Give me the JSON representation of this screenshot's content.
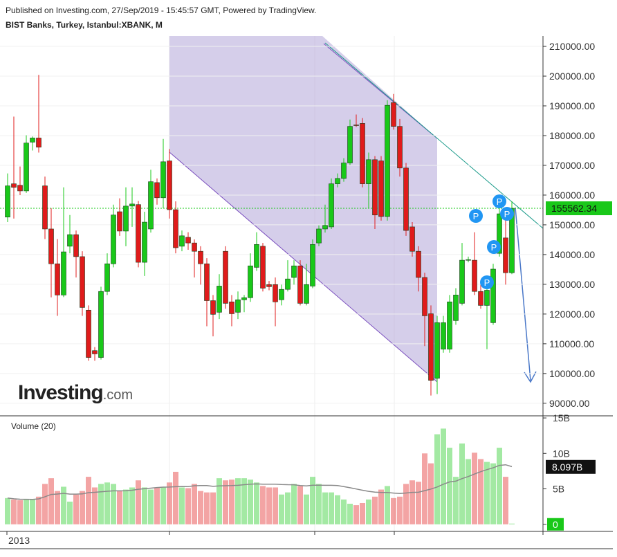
{
  "chart_data": {
    "type": "candlestick",
    "published": "Published on Investing.com, 27/Sep/2019 - 15:45:57 GMT, Powered by TradingView.",
    "title": "BIST Banks, Turkey, Istanbul:XBANK, M",
    "period_label": "2013",
    "logo": {
      "name": "Investing",
      "suffix": ".com"
    },
    "marker_label": "P",
    "up_color": "#19c819",
    "down_color": "#e01b1b",
    "open": [
      152600,
      163800,
      163300,
      161400,
      177800,
      179200,
      163100,
      148600,
      136900,
      126400,
      142800,
      146700,
      139300,
      121300,
      107700,
      105400,
      127600,
      136900,
      154400,
      147900,
      156300,
      156800,
      137400,
      148600,
      164200,
      159100,
      171500,
      155100,
      142800,
      145800,
      143900,
      141100,
      136900,
      124500,
      120600,
      141100,
      124100,
      120600,
      124800,
      125500,
      135700,
      142800,
      129900,
      129900,
      124800,
      128300,
      132300,
      136200,
      123600,
      129400,
      143900,
      148600,
      149300,
      163800,
      165600,
      170800,
      183600,
      184100,
      163800,
      171900,
      171500,
      152800,
      191100,
      183100,
      169100,
      149300,
      141100,
      132300,
      120100,
      98400,
      108200,
      108200,
      117800,
      123600,
      138100,
      138100,
      127600,
      122900,
      117100,
      140400,
      145600,
      133900
    ],
    "high": [
      167300,
      186400,
      169600,
      180100,
      179700,
      200400,
      166200,
      155600,
      145200,
      162600,
      153300,
      148100,
      141100,
      122900,
      108900,
      129200,
      140400,
      156800,
      158900,
      162600,
      162600,
      158000,
      154400,
      168500,
      165600,
      178900,
      175500,
      157900,
      148100,
      147500,
      145100,
      142800,
      138800,
      126400,
      133400,
      142800,
      126400,
      127600,
      126400,
      140400,
      147500,
      143900,
      131100,
      132300,
      129900,
      138100,
      138100,
      138100,
      136900,
      145100,
      149800,
      156800,
      165600,
      167300,
      172400,
      185400,
      187100,
      185900,
      174300,
      173100,
      173100,
      191900,
      194000,
      185600,
      170800,
      150900,
      142800,
      133900,
      122900,
      119400,
      119400,
      126400,
      128700,
      143900,
      139300,
      147500,
      129900,
      129200,
      136900,
      155600,
      153300,
      157900
    ],
    "low": [
      150900,
      152100,
      160000,
      160700,
      175000,
      174300,
      145200,
      125600,
      119400,
      125700,
      140400,
      132300,
      119400,
      104300,
      104300,
      104700,
      126400,
      135700,
      146300,
      142800,
      149300,
      135700,
      132800,
      147400,
      156800,
      155600,
      152100,
      140400,
      141100,
      141600,
      132300,
      129900,
      115900,
      112500,
      118300,
      121800,
      115900,
      118300,
      120600,
      124100,
      134500,
      127600,
      128000,
      115900,
      122900,
      127600,
      129900,
      122900,
      122900,
      128700,
      142800,
      147400,
      148600,
      162600,
      164500,
      170100,
      182900,
      162600,
      155600,
      148600,
      151400,
      151400,
      182000,
      166200,
      146300,
      139300,
      127600,
      109200,
      92600,
      93100,
      107000,
      107000,
      116400,
      122900,
      137400,
      126400,
      121800,
      108200,
      116400,
      139300,
      129900,
      133400
    ],
    "close": [
      163100,
      162600,
      161400,
      177500,
      179200,
      176100,
      148600,
      136900,
      126400,
      140900,
      146700,
      139300,
      122200,
      105400,
      106600,
      127600,
      136900,
      153300,
      147900,
      156300,
      157000,
      137400,
      150900,
      164500,
      159100,
      171200,
      155100,
      142300,
      146300,
      143900,
      141100,
      136900,
      124500,
      119900,
      129400,
      123600,
      120100,
      124800,
      125500,
      136200,
      143400,
      128700,
      129200,
      124100,
      128300,
      131800,
      136200,
      123600,
      129900,
      143400,
      148600,
      149800,
      163800,
      165600,
      170800,
      183100,
      183400,
      163800,
      171900,
      153300,
      152800,
      190200,
      183100,
      169100,
      148100,
      141100,
      132300,
      119400,
      97700,
      117100,
      117100,
      124100,
      126400,
      138100,
      138300,
      127600,
      122900,
      128000,
      135100,
      153700,
      133900,
      155562.34
    ],
    "ylim": [
      86000,
      213500
    ],
    "yticks": [
      {
        "value": 90000,
        "label": "90000.00"
      },
      {
        "value": 100000,
        "label": "100000.00"
      },
      {
        "value": 110000,
        "label": "110000.00"
      },
      {
        "value": 120000,
        "label": "120000.00"
      },
      {
        "value": 130000,
        "label": "130000.00"
      },
      {
        "value": 140000,
        "label": "140000.00"
      },
      {
        "value": 150000,
        "label": "150000.00"
      },
      {
        "value": 160000,
        "label": "160000.00"
      },
      {
        "value": 170000,
        "label": "170000.00"
      },
      {
        "value": 180000,
        "label": "180000.00"
      },
      {
        "value": 190000,
        "label": "190000.00"
      },
      {
        "value": 200000,
        "label": "200000.00"
      },
      {
        "value": 210000,
        "label": "210000.00"
      }
    ],
    "volume": {
      "title": "Volume (20)",
      "ma_color": "#8a8a8a",
      "values": [
        3.7,
        3.5,
        3.4,
        3.5,
        3.5,
        3.9,
        5.7,
        6.5,
        4.7,
        5.3,
        3.2,
        4.2,
        4.7,
        6.7,
        5.2,
        5.7,
        5.9,
        5.7,
        4.7,
        4.9,
        5.2,
        6.2,
        5.2,
        4.9,
        5.2,
        5.2,
        5.9,
        7.4,
        5.2,
        5.1,
        5.7,
        4.7,
        4.5,
        4.5,
        6.5,
        6.2,
        6.3,
        6.5,
        6.5,
        6.3,
        5.9,
        5.4,
        5.2,
        5.2,
        4.2,
        4.5,
        5.7,
        5.4,
        4.2,
        6.7,
        5.7,
        4.5,
        4.5,
        4.1,
        3.5,
        2.9,
        2.7,
        3.0,
        3.5,
        3.9,
        4.9,
        5.4,
        3.7,
        3.9,
        5.7,
        6.2,
        6.0,
        10.0,
        8.6,
        12.7,
        13.5,
        10.8,
        6.7,
        11.4,
        9.2,
        10.1,
        9.2,
        8.8,
        8.6,
        10.8,
        6.7,
        0.1
      ],
      "ma_last": {
        "value": 8.097,
        "label": "8.097B"
      },
      "ylim": [
        -1,
        15.2
      ],
      "yticks": [
        0,
        {
          "value": 5,
          "label": "5B"
        },
        {
          "value": 10,
          "label": "10B"
        },
        {
          "value": 15,
          "label": "15B"
        }
      ]
    }
  }
}
